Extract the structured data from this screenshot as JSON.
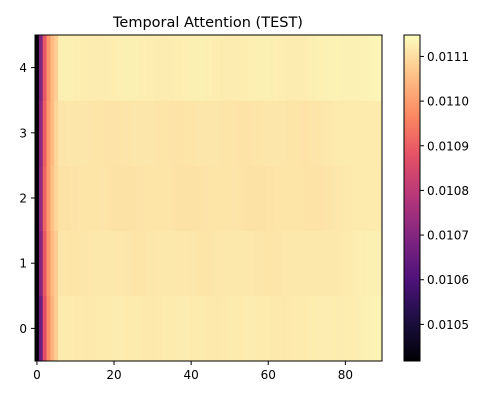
{
  "chart_data": {
    "type": "heatmap",
    "title": "Temporal Attention (TEST)",
    "xlabel": "",
    "ylabel": "",
    "x_ticks": [
      0,
      20,
      40,
      60,
      80
    ],
    "y_ticks": [
      0,
      1,
      2,
      3,
      4
    ],
    "xlim": [
      -0.5,
      89.5
    ],
    "ylim": [
      -0.5,
      4.5
    ],
    "n_cols": 90,
    "n_rows": 5,
    "colormap": "magma",
    "vmin": 0.010418,
    "vmax": 0.011148,
    "colorbar_ticks": [
      "0.0105",
      "0.0106",
      "0.0107",
      "0.0108",
      "0.0109",
      "0.0110",
      "0.0111"
    ],
    "row_profiles": [
      {
        "row": 0,
        "start": [
          0.010418,
          0.01066,
          0.01087,
          0.01098,
          0.01104,
          0.01108
        ],
        "plateau": 0.01112
      },
      {
        "row": 1,
        "start": [
          0.010418,
          0.0107,
          0.01089,
          0.01099,
          0.01105,
          0.01108
        ],
        "plateau": 0.011115
      },
      {
        "row": 2,
        "start": [
          0.010418,
          0.01072,
          0.01091,
          0.011,
          0.01106,
          0.01109
        ],
        "plateau": 0.01111
      },
      {
        "row": 3,
        "start": [
          0.010418,
          0.01071,
          0.0109,
          0.011,
          0.01105,
          0.01109
        ],
        "plateau": 0.011112
      },
      {
        "row": 4,
        "start": [
          0.010418,
          0.01069,
          0.01089,
          0.01099,
          0.01105,
          0.01108
        ],
        "plateau": 0.011125
      }
    ]
  }
}
